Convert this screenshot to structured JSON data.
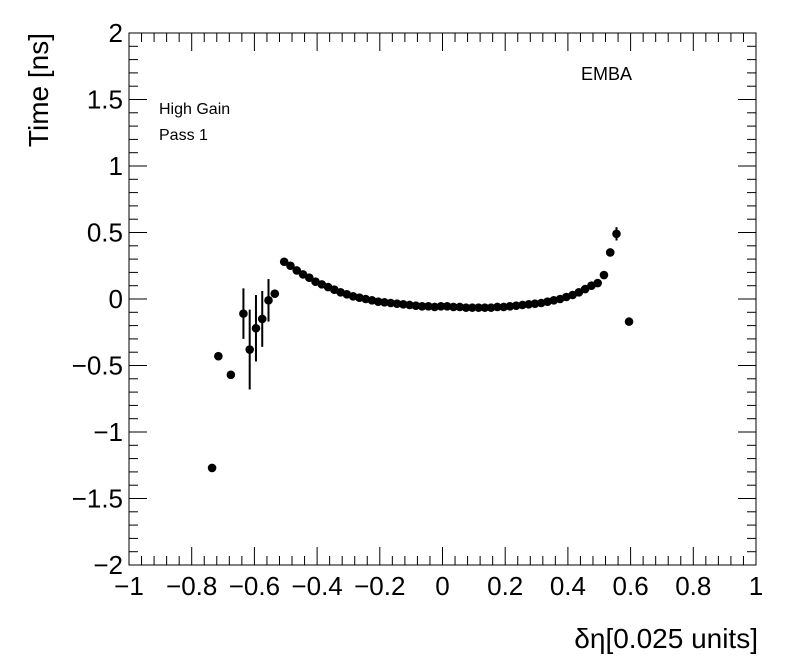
{
  "chart_data": {
    "type": "scatter",
    "title": "",
    "xlabel": "δη[0.025 units]",
    "ylabel": "Time [ns]",
    "xlim": [
      -1,
      1
    ],
    "ylim": [
      -2,
      2
    ],
    "x_ticks": [
      -1,
      -0.8,
      -0.6,
      -0.4,
      -0.2,
      0,
      0.2,
      0.4,
      0.6,
      0.8,
      1
    ],
    "x_tick_labels": [
      "−1",
      "−0.8",
      "−0.6",
      "−0.4",
      "−0.2",
      "0",
      "0.2",
      "0.4",
      "0.6",
      "0.8",
      "1"
    ],
    "y_ticks": [
      -2,
      -1.5,
      -1,
      -0.5,
      0,
      0.5,
      1,
      1.5,
      2
    ],
    "y_tick_labels": [
      "−2",
      "−1.5",
      "−1",
      "−0.5",
      "0",
      "0.5",
      "1",
      "1.5",
      "2"
    ],
    "grid": false,
    "annotations": [
      "High Gain",
      "Pass 1",
      "EMBA"
    ],
    "marker_color": "#000000",
    "points": [
      {
        "x": -0.735,
        "y": -1.27,
        "err": 0.0
      },
      {
        "x": -0.715,
        "y": -0.43,
        "err": 0.0
      },
      {
        "x": -0.675,
        "y": -0.57,
        "err": 0.0
      },
      {
        "x": -0.635,
        "y": -0.11,
        "err": 0.19
      },
      {
        "x": -0.615,
        "y": -0.38,
        "err": 0.3
      },
      {
        "x": -0.595,
        "y": -0.22,
        "err": 0.25
      },
      {
        "x": -0.575,
        "y": -0.15,
        "err": 0.21
      },
      {
        "x": -0.555,
        "y": -0.01,
        "err": 0.16
      },
      {
        "x": -0.535,
        "y": 0.04,
        "err": 0.0
      },
      {
        "x": -0.505,
        "y": 0.28,
        "err": 0.0
      },
      {
        "x": -0.485,
        "y": 0.25,
        "err": 0.0
      },
      {
        "x": -0.465,
        "y": 0.215,
        "err": 0.0
      },
      {
        "x": -0.445,
        "y": 0.185,
        "err": 0.0
      },
      {
        "x": -0.425,
        "y": 0.16,
        "err": 0.0
      },
      {
        "x": -0.405,
        "y": 0.13,
        "err": 0.0
      },
      {
        "x": -0.385,
        "y": 0.11,
        "err": 0.0
      },
      {
        "x": -0.365,
        "y": 0.09,
        "err": 0.0
      },
      {
        "x": -0.345,
        "y": 0.07,
        "err": 0.0
      },
      {
        "x": -0.325,
        "y": 0.05,
        "err": 0.0
      },
      {
        "x": -0.305,
        "y": 0.035,
        "err": 0.0
      },
      {
        "x": -0.285,
        "y": 0.02,
        "err": 0.0
      },
      {
        "x": -0.265,
        "y": 0.01,
        "err": 0.0
      },
      {
        "x": -0.245,
        "y": 0.0,
        "err": 0.0
      },
      {
        "x": -0.225,
        "y": -0.01,
        "err": 0.0
      },
      {
        "x": -0.205,
        "y": -0.02,
        "err": 0.0
      },
      {
        "x": -0.185,
        "y": -0.025,
        "err": 0.0
      },
      {
        "x": -0.165,
        "y": -0.03,
        "err": 0.0
      },
      {
        "x": -0.145,
        "y": -0.035,
        "err": 0.0
      },
      {
        "x": -0.125,
        "y": -0.04,
        "err": 0.0
      },
      {
        "x": -0.105,
        "y": -0.045,
        "err": 0.0
      },
      {
        "x": -0.085,
        "y": -0.05,
        "err": 0.0
      },
      {
        "x": -0.065,
        "y": -0.055,
        "err": 0.0
      },
      {
        "x": -0.045,
        "y": -0.055,
        "err": 0.0
      },
      {
        "x": -0.025,
        "y": -0.06,
        "err": 0.0
      },
      {
        "x": -0.005,
        "y": -0.055,
        "err": 0.0
      },
      {
        "x": 0.015,
        "y": -0.055,
        "err": 0.0
      },
      {
        "x": 0.035,
        "y": -0.06,
        "err": 0.0
      },
      {
        "x": 0.055,
        "y": -0.06,
        "err": 0.0
      },
      {
        "x": 0.075,
        "y": -0.065,
        "err": 0.0
      },
      {
        "x": 0.095,
        "y": -0.065,
        "err": 0.0
      },
      {
        "x": 0.115,
        "y": -0.065,
        "err": 0.0
      },
      {
        "x": 0.135,
        "y": -0.065,
        "err": 0.0
      },
      {
        "x": 0.155,
        "y": -0.065,
        "err": 0.0
      },
      {
        "x": 0.175,
        "y": -0.06,
        "err": 0.0
      },
      {
        "x": 0.195,
        "y": -0.06,
        "err": 0.0
      },
      {
        "x": 0.215,
        "y": -0.055,
        "err": 0.0
      },
      {
        "x": 0.235,
        "y": -0.05,
        "err": 0.0
      },
      {
        "x": 0.255,
        "y": -0.045,
        "err": 0.0
      },
      {
        "x": 0.275,
        "y": -0.04,
        "err": 0.0
      },
      {
        "x": 0.295,
        "y": -0.035,
        "err": 0.0
      },
      {
        "x": 0.315,
        "y": -0.03,
        "err": 0.0
      },
      {
        "x": 0.335,
        "y": -0.02,
        "err": 0.0
      },
      {
        "x": 0.355,
        "y": -0.01,
        "err": 0.0
      },
      {
        "x": 0.375,
        "y": 0.0,
        "err": 0.0
      },
      {
        "x": 0.395,
        "y": 0.015,
        "err": 0.0
      },
      {
        "x": 0.415,
        "y": 0.03,
        "err": 0.0
      },
      {
        "x": 0.435,
        "y": 0.05,
        "err": 0.0
      },
      {
        "x": 0.455,
        "y": 0.075,
        "err": 0.0
      },
      {
        "x": 0.475,
        "y": 0.1,
        "err": 0.0
      },
      {
        "x": 0.495,
        "y": 0.12,
        "err": 0.0
      },
      {
        "x": 0.515,
        "y": 0.18,
        "err": 0.0
      },
      {
        "x": 0.535,
        "y": 0.35,
        "err": 0.0
      },
      {
        "x": 0.555,
        "y": 0.49,
        "err": 0.05
      },
      {
        "x": 0.595,
        "y": -0.17,
        "err": 0.0
      }
    ]
  }
}
